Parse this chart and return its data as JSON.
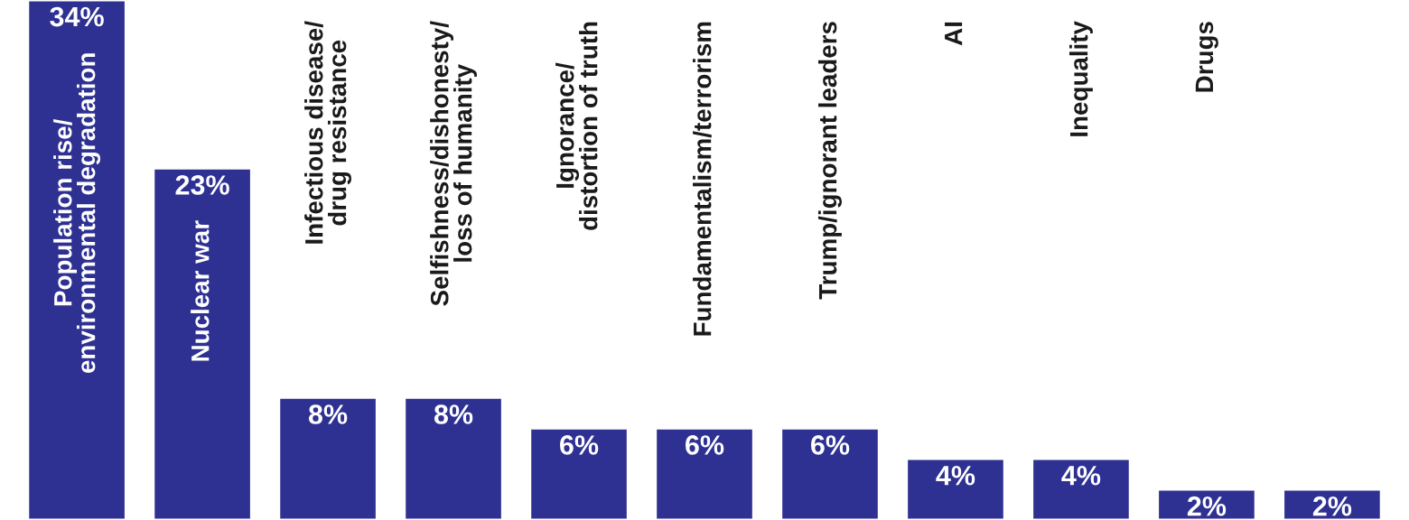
{
  "chart_data": {
    "type": "bar",
    "categories": [
      "Population rise/\nenvironmental degradation",
      "Nuclear war",
      "Infectious disease/\ndrug resistance",
      "Selfishness/dishonesty/\nloss of humanity",
      "Ignorance/\ndistortion of truth",
      "Fundamentalism/terrorism",
      "Trump/ignorant leaders",
      "AI",
      "Inequality",
      "Drugs",
      null
    ],
    "values": [
      34,
      23,
      8,
      8,
      6,
      6,
      6,
      4,
      4,
      2,
      2
    ],
    "value_labels": [
      "34%",
      "23%",
      "8%",
      "8%",
      "6%",
      "6%",
      "6%",
      "4%",
      "4%",
      "2%",
      "2%"
    ],
    "color": "#2e3192"
  }
}
